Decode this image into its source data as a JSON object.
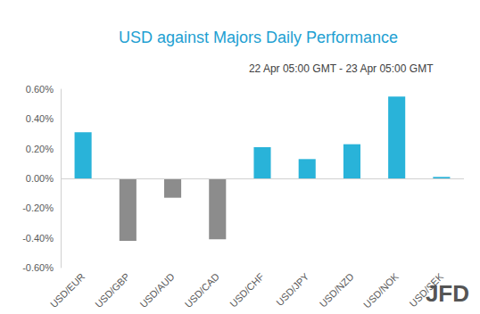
{
  "chart_data": {
    "type": "bar",
    "title": "USD against Majors Daily Performance",
    "subtitle": "22 Apr 05:00 GMT - 23 Apr 05:00 GMT",
    "categories": [
      "USD/EUR",
      "USD/GBP",
      "USD/AUD",
      "USD/CAD",
      "USD/CHF",
      "USD/JPY",
      "USD/NZD",
      "USD/NOK",
      "USD/SEK"
    ],
    "values": [
      0.31,
      -0.42,
      -0.13,
      -0.41,
      0.21,
      0.13,
      0.23,
      0.55,
      0.01
    ],
    "colors": [
      "#29b3d9",
      "#8c8c8c",
      "#8c8c8c",
      "#8c8c8c",
      "#29b3d9",
      "#29b3d9",
      "#29b3d9",
      "#29b3d9",
      "#29b3d9"
    ],
    "ylim": [
      -0.6,
      0.6
    ],
    "yticks": [
      {
        "value": -0.6,
        "label": "-0.60%"
      },
      {
        "value": -0.4,
        "label": "-0.40%"
      },
      {
        "value": -0.2,
        "label": "-0.20%"
      },
      {
        "value": 0,
        "label": "0.00%"
      },
      {
        "value": 0.2,
        "label": "0.20%"
      },
      {
        "value": 0.4,
        "label": "0.40%"
      },
      {
        "value": 0.6,
        "label": "0.60%"
      }
    ],
    "grid": false,
    "annotations": [
      "JFD"
    ]
  }
}
